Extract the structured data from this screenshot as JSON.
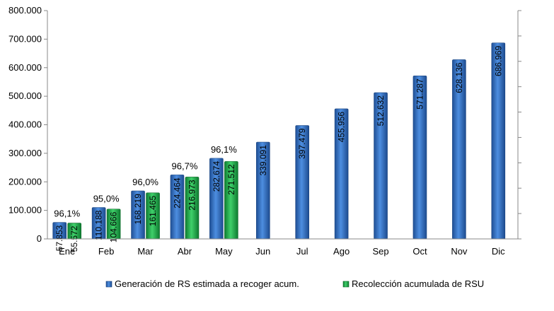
{
  "chart_data": {
    "type": "bar",
    "categories": [
      "Ene",
      "Feb",
      "Mar",
      "Abr",
      "May",
      "Jun",
      "Jul",
      "Ago",
      "Sep",
      "Oct",
      "Nov",
      "Dic"
    ],
    "series": [
      {
        "name": "Generación de RS estimada a recoger acum.",
        "color": "#2f6fc4",
        "values": [
          57853,
          110188,
          168219,
          224464,
          282674,
          339091,
          397479,
          455956,
          512632,
          571287,
          628136,
          686969
        ],
        "labels": [
          "57.853",
          "110.188",
          "168.219",
          "224.464",
          "282.674",
          "339.091",
          "397.479",
          "455.956",
          "512.632",
          "571.287",
          "628.136",
          "686.969"
        ]
      },
      {
        "name": "Recolección acumulada de RSU",
        "color": "#1fae4a",
        "values": [
          55572,
          104666,
          161465,
          216973,
          271512,
          null,
          null,
          null,
          null,
          null,
          null,
          null
        ],
        "labels": [
          "55.572",
          "104.666",
          "161.465",
          "216.973",
          "271.512",
          null,
          null,
          null,
          null,
          null,
          null,
          null
        ]
      }
    ],
    "percent_labels": [
      "96,1%",
      "95,0%",
      "96,0%",
      "96,7%",
      "96,1%",
      null,
      null,
      null,
      null,
      null,
      null,
      null
    ],
    "ylim": [
      0,
      800000
    ],
    "yticks": [
      0,
      100000,
      200000,
      300000,
      400000,
      500000,
      600000,
      700000,
      800000
    ],
    "ytick_labels": [
      "0",
      "100.000",
      "200.000",
      "300.000",
      "400.000",
      "500.000",
      "600.000",
      "700.000",
      "800.000"
    ],
    "title": "",
    "xlabel": "",
    "ylabel": "",
    "grid": false,
    "legend_position": "bottom"
  }
}
